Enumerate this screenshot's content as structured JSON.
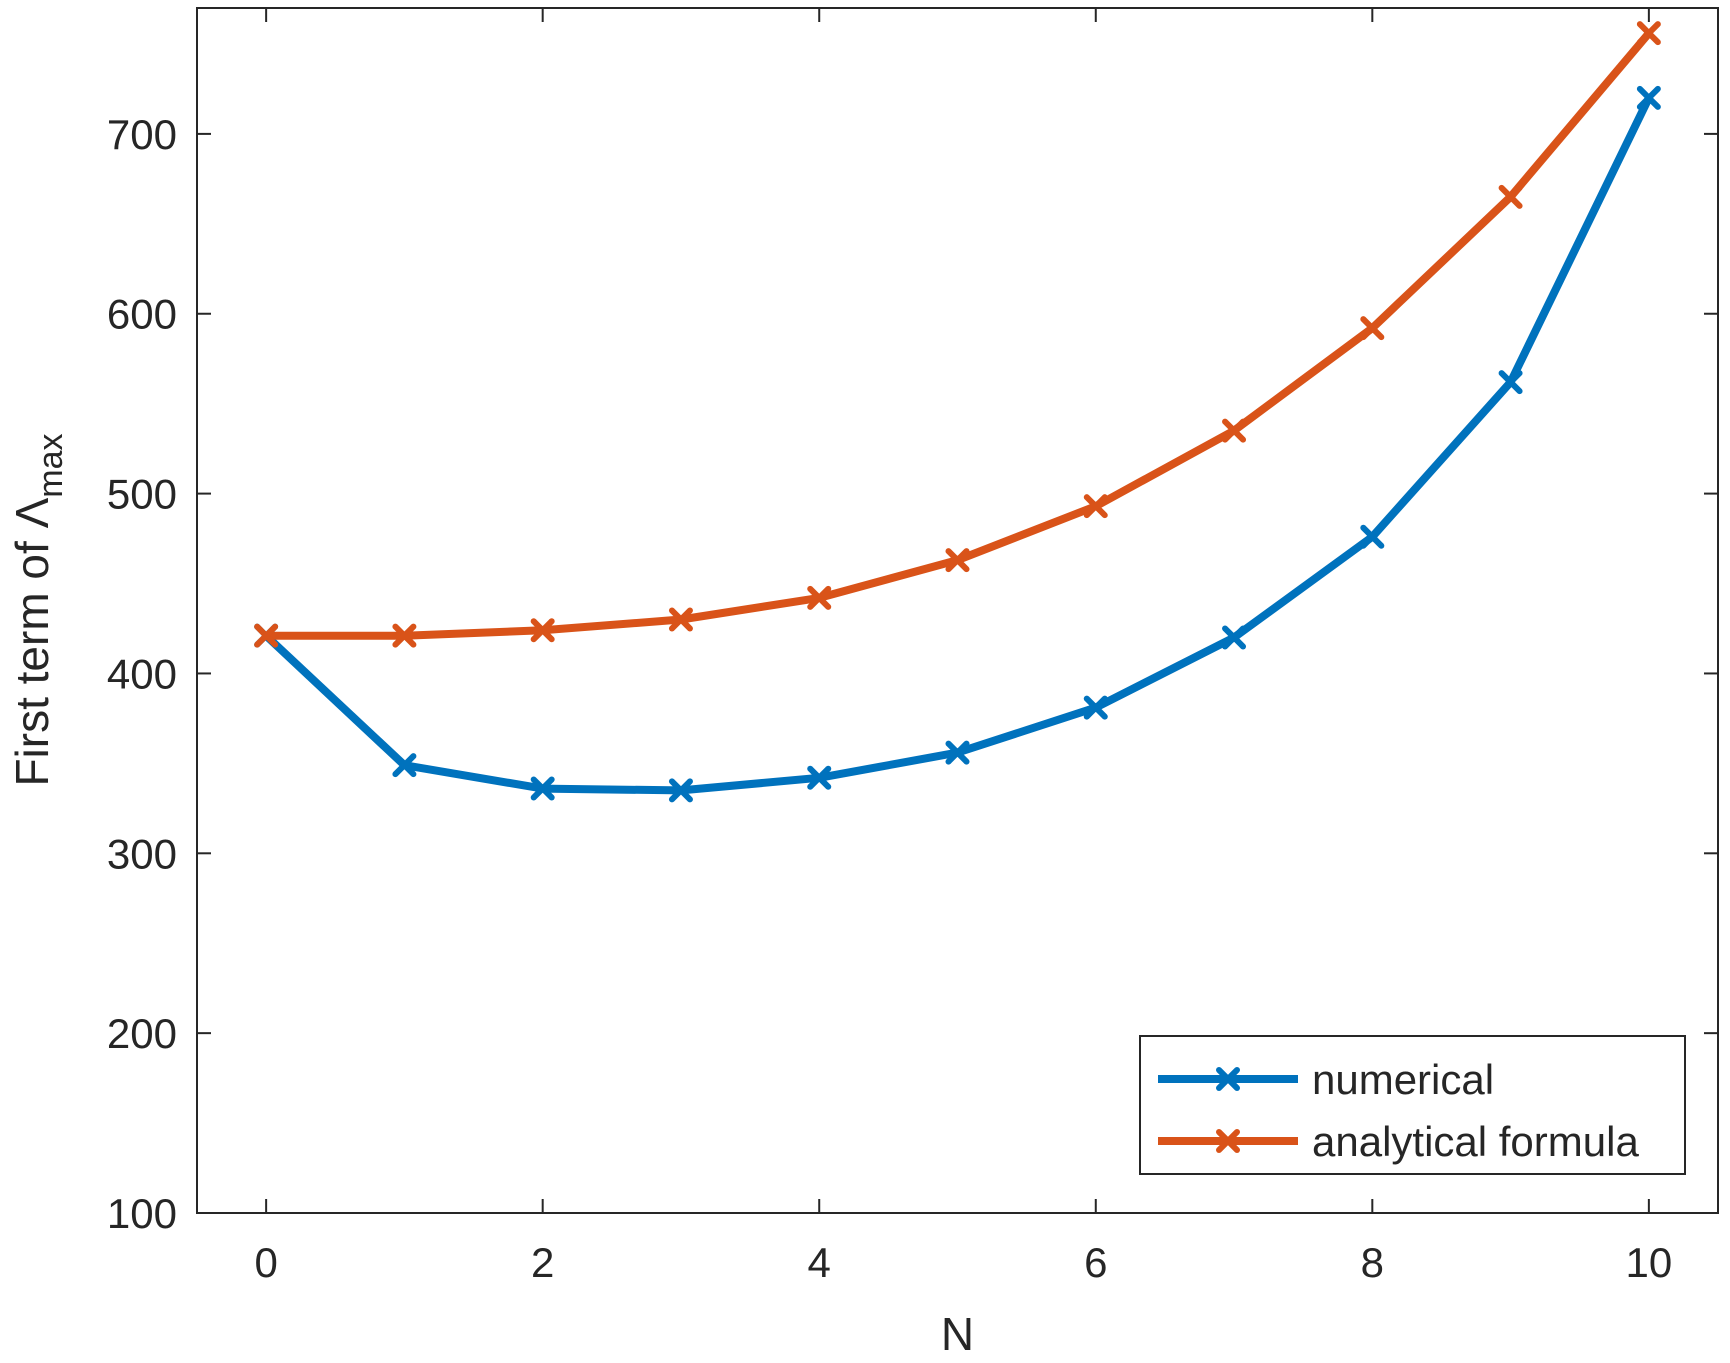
{
  "chart_data": {
    "type": "line",
    "title": "",
    "xlabel": "N",
    "ylabel": "First term of Λ",
    "ylabel_subscript": "max",
    "xlim": [
      -0.5,
      10.5
    ],
    "ylim": [
      100,
      770
    ],
    "x_ticks": [
      0,
      2,
      4,
      6,
      8,
      10
    ],
    "y_ticks": [
      100,
      200,
      300,
      400,
      500,
      600,
      700
    ],
    "grid": false,
    "legend_position": "bottom-right",
    "x": [
      0,
      1,
      2,
      3,
      4,
      5,
      6,
      7,
      8,
      9,
      10
    ],
    "series": [
      {
        "name": "numerical",
        "color": "#0072BD",
        "marker": "x",
        "values": [
          421,
          349,
          336,
          335,
          342,
          356,
          381,
          420,
          476,
          562,
          720
        ]
      },
      {
        "name": "analytical formula",
        "color": "#D95319",
        "marker": "x",
        "values": [
          421,
          421,
          424,
          430,
          442,
          463,
          493,
          535,
          592,
          665,
          756
        ]
      }
    ]
  }
}
